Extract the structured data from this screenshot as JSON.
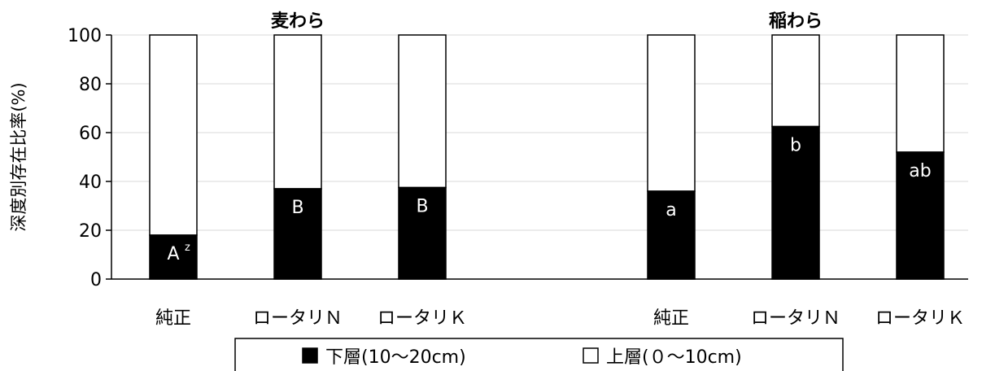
{
  "chart_data": {
    "type": "bar",
    "stacked": true,
    "ylabel": "深度別存在比率(%)",
    "ylim": [
      0,
      100
    ],
    "yticks": [
      0,
      20,
      40,
      60,
      80,
      100
    ],
    "grid": true,
    "groups": [
      {
        "title": "麦わら",
        "categories": [
          "純正",
          "ロータリＮ",
          "ロータリＫ"
        ],
        "lower": [
          18,
          37,
          37.5
        ],
        "labels": [
          "A",
          "B",
          "B"
        ],
        "label_suffix": [
          "z",
          "",
          ""
        ]
      },
      {
        "title": "稲わら",
        "categories": [
          "純正",
          "ロータリＮ",
          "ロータリＫ"
        ],
        "lower": [
          36,
          62.5,
          52
        ],
        "labels": [
          "a",
          "b",
          "ab"
        ],
        "label_suffix": [
          "",
          "",
          ""
        ]
      }
    ],
    "series": [
      {
        "name": "下層(10～20cm)",
        "color": "#000000"
      },
      {
        "name": "上層(０～10cm)",
        "color": "#ffffff"
      }
    ],
    "legend_position": "bottom"
  }
}
